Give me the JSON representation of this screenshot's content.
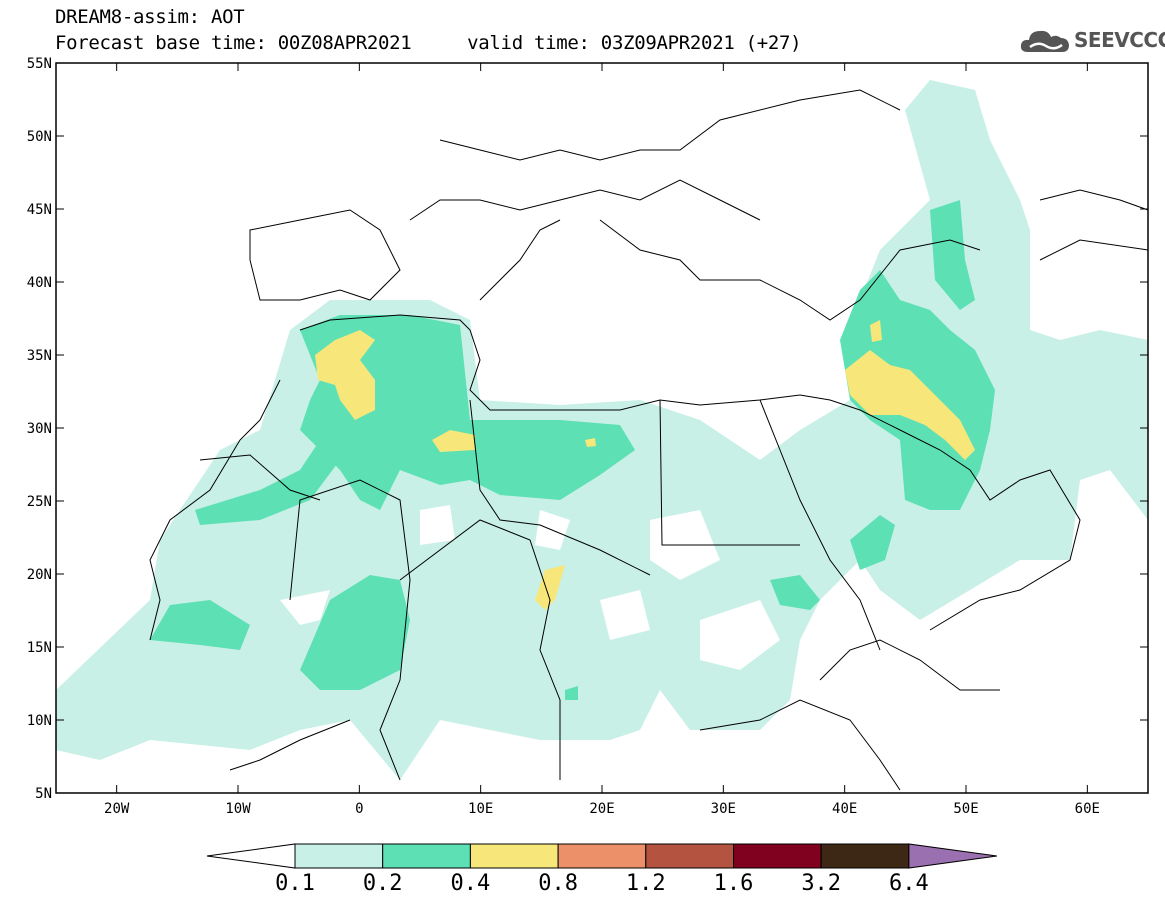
{
  "header": {
    "title": "DREAM8-assim: AOT",
    "subtitle": "Forecast base time: 00Z08APR2021     valid time: 03Z09APR2021 (+27)",
    "logo_text": "SEEVCCC"
  },
  "map": {
    "lat_labels": [
      "55N",
      "50N",
      "45N",
      "40N",
      "35N",
      "30N",
      "25N",
      "20N",
      "15N",
      "10N",
      "5N"
    ],
    "lon_labels": [
      "20W",
      "10W",
      "0",
      "10E",
      "20E",
      "30E",
      "40E",
      "50E",
      "60E"
    ],
    "lon_range": [
      -25,
      65
    ],
    "lat_range": [
      5,
      55
    ]
  },
  "legend": {
    "levels": [
      "0.1",
      "0.2",
      "0.4",
      "0.8",
      "1.2",
      "1.6",
      "3.2",
      "6.4"
    ],
    "colors": [
      "#c8f0e6",
      "#5ce0b4",
      "#f7e77a",
      "#eb9068",
      "#b45440",
      "#800020",
      "#3c2814",
      "#9b70b0"
    ]
  }
}
